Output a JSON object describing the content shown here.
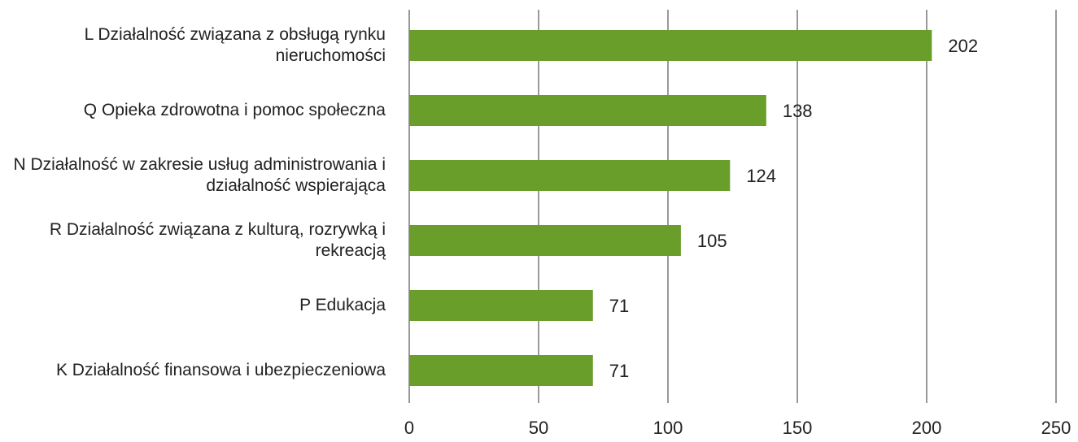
{
  "chart_data": {
    "type": "barh",
    "categories": [
      "L Działalność związana z obsługą rynku nieruchomości",
      "Q Opieka zdrowotna i pomoc społeczna",
      "N Działalność w zakresie usług administrowania i działalność wspierająca",
      "R Działalność związana z kulturą, rozrywką i rekreacją",
      "P Edukacja",
      "K Działalność finansowa i ubezpieczeniowa"
    ],
    "values": [
      202,
      138,
      124,
      105,
      71,
      71
    ],
    "color": "#6a9e2a",
    "xlim": [
      0,
      250
    ],
    "xticks": [
      0,
      50,
      100,
      150,
      200,
      250
    ],
    "grid": true
  }
}
